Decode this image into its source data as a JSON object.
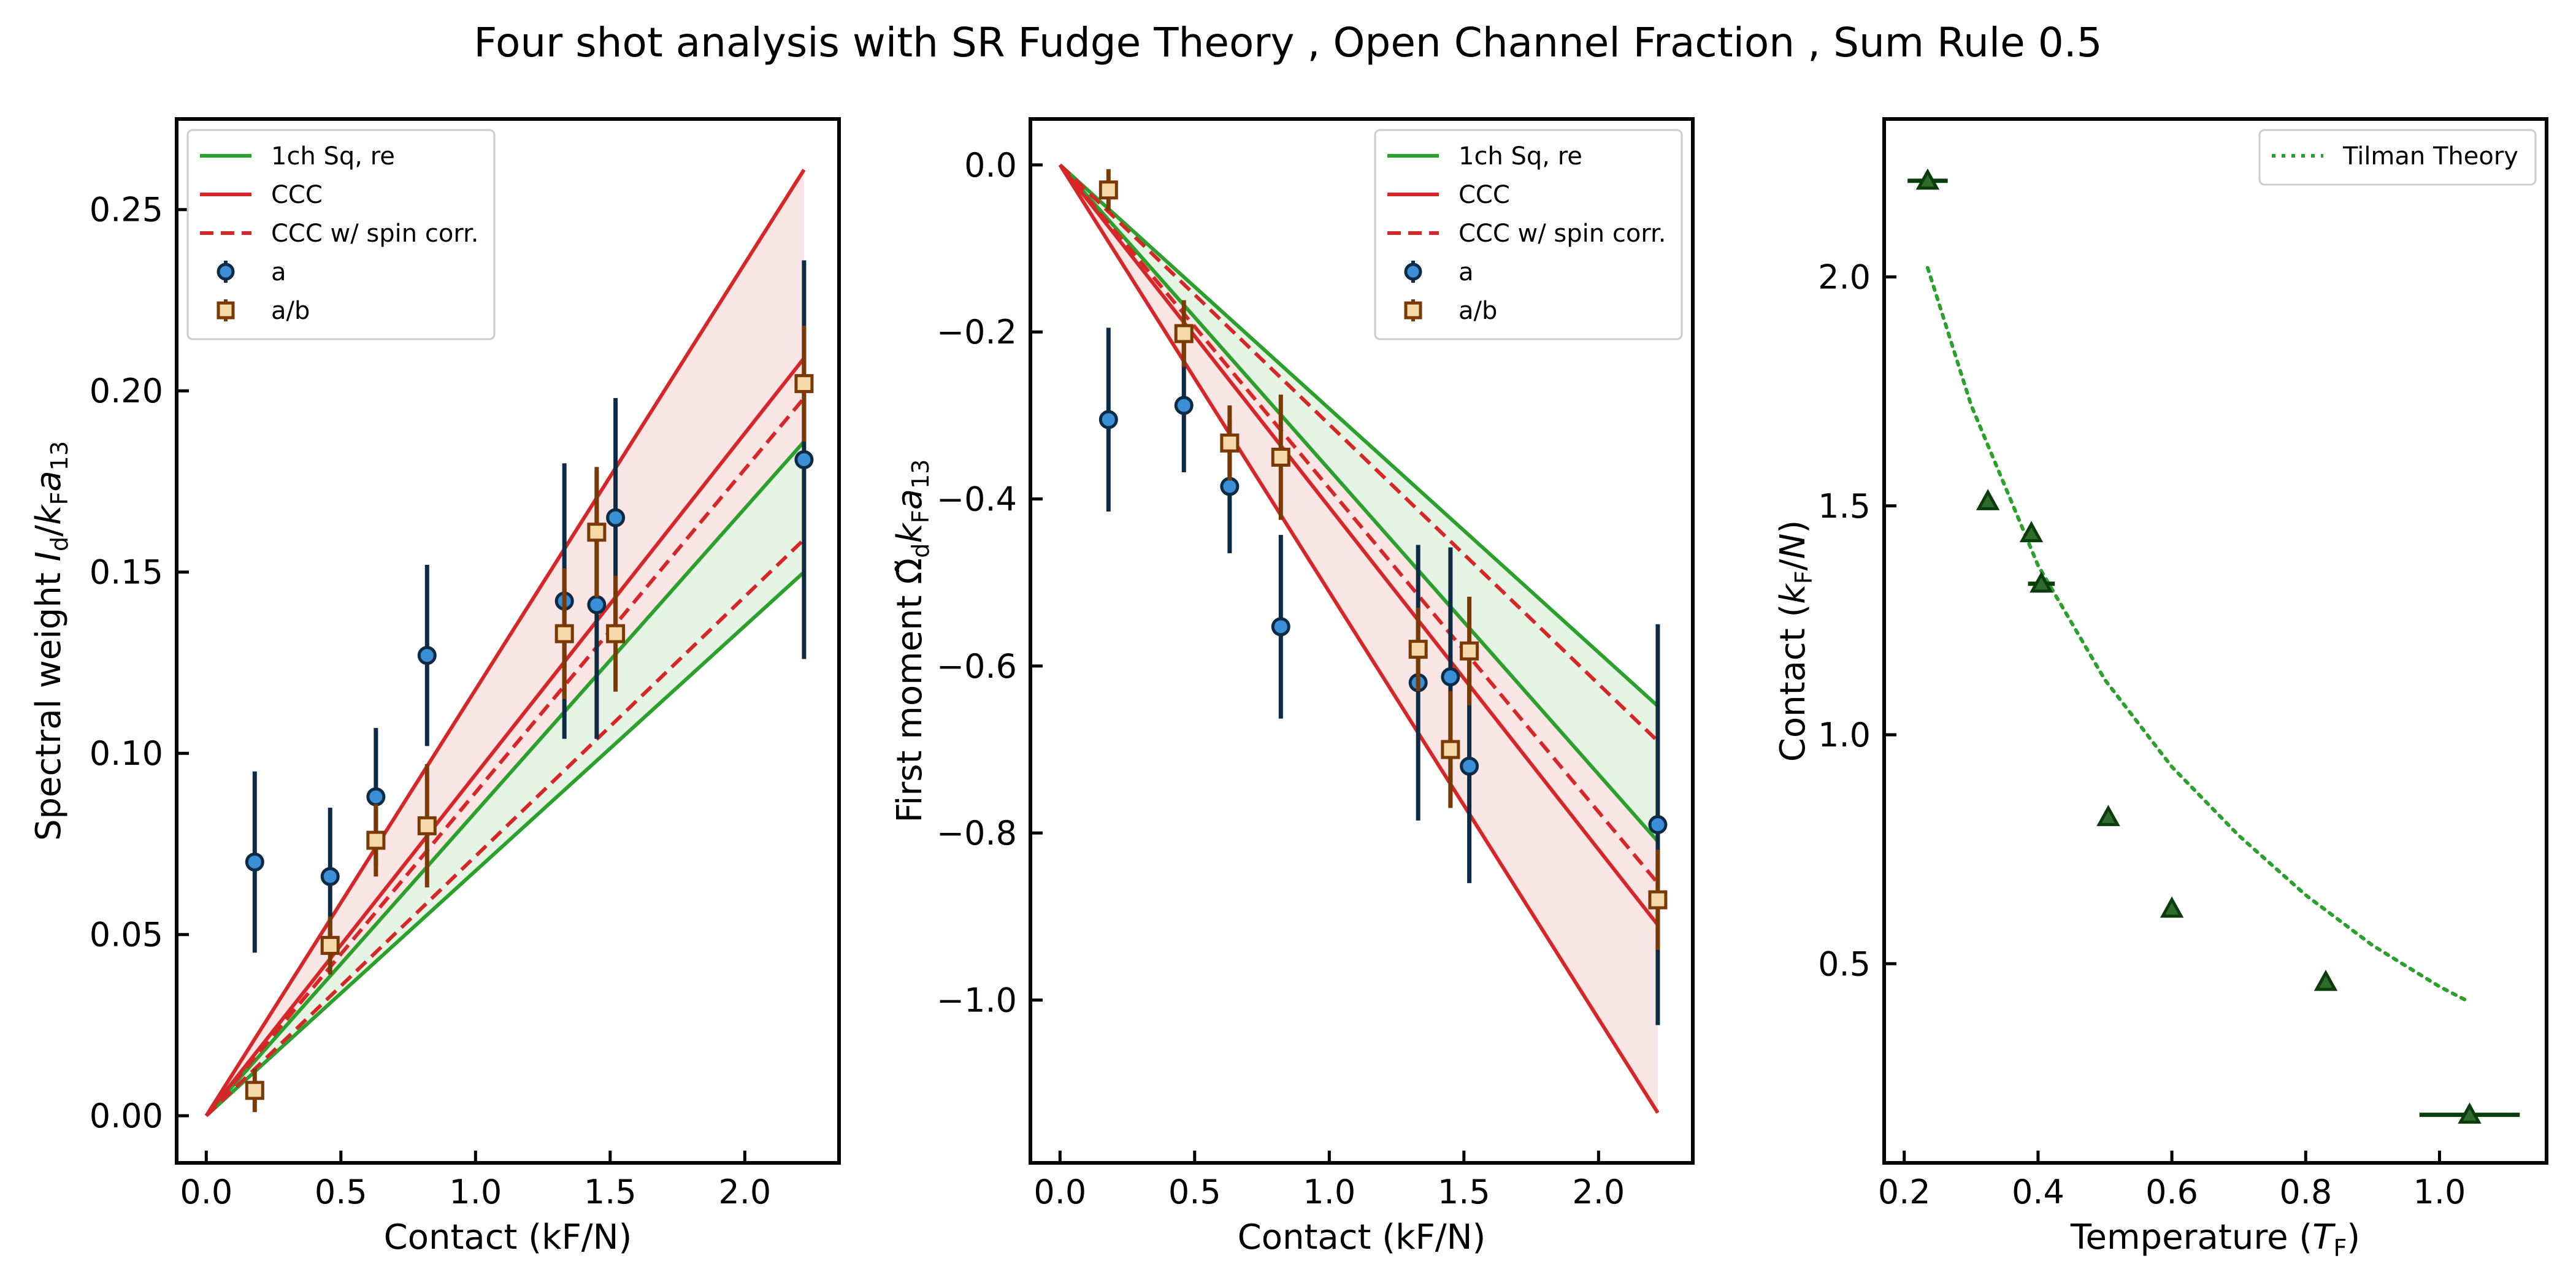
{
  "figure": {
    "title": "Four shot analysis with SR Fudge Theory , Open Channel Fraction , Sum Rule 0.5"
  },
  "colors": {
    "green": "#2ca02c",
    "red": "#d62728",
    "a_face": "#3a8fd6",
    "a_edge": "#0d2b45",
    "ab_face": "#f5d9a8",
    "ab_edge": "#7a3a05",
    "temp_marker": "#2f6b2f",
    "temp_edge": "#0b3d0b"
  },
  "chart_data": [
    {
      "type": "line",
      "xlabel": "Contact (kF/N)",
      "ylabel": "Spectral weight I_d/k_Fa_13",
      "ylabel_parts": [
        "Spectral weight ",
        "I",
        "d",
        "/",
        "k",
        "F",
        "a",
        "13"
      ],
      "xlim": [
        -0.11,
        2.35
      ],
      "ylim": [
        -0.013,
        0.275
      ],
      "xticks": [
        0.0,
        0.5,
        1.0,
        1.5,
        2.0
      ],
      "xtick_labels": [
        "0.0",
        "0.5",
        "1.0",
        "1.5",
        "2.0"
      ],
      "yticks": [
        0.0,
        0.05,
        0.1,
        0.15,
        0.2,
        0.25
      ],
      "ytick_labels": [
        "0.00",
        "0.05",
        "0.10",
        "0.15",
        "0.20",
        "0.25"
      ],
      "legend_loc": "upper left",
      "lines": [
        {
          "name": "1ch Sq, re",
          "style": "solid",
          "color": "green",
          "x": [
            0,
            2.22
          ],
          "y_pair": [
            [
              0,
              0.15
            ],
            [
              0,
              0.186
            ]
          ]
        },
        {
          "name": "CCC",
          "style": "solid",
          "color": "red",
          "x": [
            0,
            2.22
          ],
          "y_pair": [
            [
              0,
              0.209
            ],
            [
              0,
              0.261
            ]
          ]
        },
        {
          "name": "CCC w/ spin corr.",
          "style": "dashed",
          "color": "red",
          "x": [
            0,
            2.22
          ],
          "y_pair": [
            [
              0,
              0.159
            ],
            [
              0,
              0.198
            ]
          ]
        }
      ],
      "bands": [
        {
          "color": "green",
          "x": [
            0,
            2.22
          ],
          "low": [
            0,
            0.15
          ],
          "high": [
            0,
            0.186
          ]
        },
        {
          "color": "red",
          "x": [
            0,
            2.22
          ],
          "low": [
            0,
            0.186
          ],
          "high": [
            0,
            0.261
          ]
        }
      ],
      "series": [
        {
          "name": "a",
          "marker": "circle",
          "points": [
            {
              "x": 0.18,
              "y": 0.07,
              "err": 0.025
            },
            {
              "x": 0.46,
              "y": 0.066,
              "err": 0.019
            },
            {
              "x": 0.63,
              "y": 0.088,
              "err": 0.019
            },
            {
              "x": 0.82,
              "y": 0.127,
              "err": 0.025
            },
            {
              "x": 1.33,
              "y": 0.142,
              "err": 0.038
            },
            {
              "x": 1.45,
              "y": 0.141,
              "err": 0.037
            },
            {
              "x": 1.52,
              "y": 0.165,
              "err": 0.033
            },
            {
              "x": 2.22,
              "y": 0.181,
              "err": 0.055
            }
          ]
        },
        {
          "name": "a/b",
          "marker": "square",
          "points": [
            {
              "x": 0.18,
              "y": 0.007,
              "err": 0.006
            },
            {
              "x": 0.46,
              "y": 0.047,
              "err": 0.008
            },
            {
              "x": 0.63,
              "y": 0.076,
              "err": 0.01
            },
            {
              "x": 0.82,
              "y": 0.08,
              "err": 0.017
            },
            {
              "x": 1.33,
              "y": 0.133,
              "err": 0.018
            },
            {
              "x": 1.45,
              "y": 0.161,
              "err": 0.018
            },
            {
              "x": 1.52,
              "y": 0.133,
              "err": 0.016
            },
            {
              "x": 2.22,
              "y": 0.202,
              "err": 0.016
            }
          ]
        }
      ]
    },
    {
      "type": "line",
      "xlabel": "Contact (kF/N)",
      "ylabel": "First moment Ω̃_dk_Fa_13",
      "ylabel_parts": [
        "First moment ",
        "Ω̃",
        "d",
        "k",
        "F",
        "a",
        "13"
      ],
      "xlim": [
        -0.11,
        2.35
      ],
      "ylim": [
        -1.195,
        0.055
      ],
      "xticks": [
        0.0,
        0.5,
        1.0,
        1.5,
        2.0
      ],
      "xtick_labels": [
        "0.0",
        "0.5",
        "1.0",
        "1.5",
        "2.0"
      ],
      "yticks": [
        0.0,
        -0.2,
        -0.4,
        -0.6,
        -0.8,
        -1.0
      ],
      "ytick_labels": [
        "0.0",
        "−0.2",
        "−0.4",
        "−0.6",
        "−0.8",
        "−1.0"
      ],
      "legend_loc": "upper right",
      "lines": [
        {
          "name": "1ch Sq, re",
          "style": "solid",
          "color": "green",
          "x": [
            0,
            2.22
          ],
          "y_pair": [
            [
              0,
              -0.648
            ],
            [
              0,
              -0.81
            ]
          ]
        },
        {
          "name": "CCC",
          "style": "solid",
          "color": "red",
          "x": [
            0,
            2.22
          ],
          "y_pair": [
            [
              0,
              -0.91
            ],
            [
              0,
              -1.135
            ]
          ]
        },
        {
          "name": "CCC w/ spin corr.",
          "style": "dashed",
          "color": "red",
          "x": [
            0,
            2.22
          ],
          "y_pair": [
            [
              0,
              -0.69
            ],
            [
              0,
              -0.86
            ]
          ]
        }
      ],
      "bands": [
        {
          "color": "green",
          "x": [
            0,
            2.22
          ],
          "low": [
            0,
            -0.81
          ],
          "high": [
            0,
            -0.648
          ]
        },
        {
          "color": "red",
          "x": [
            0,
            2.22
          ],
          "low": [
            0,
            -1.135
          ],
          "high": [
            0,
            -0.81
          ]
        }
      ],
      "series": [
        {
          "name": "a",
          "marker": "circle",
          "points": [
            {
              "x": 0.18,
              "y": -0.305,
              "err": 0.11
            },
            {
              "x": 0.46,
              "y": -0.288,
              "err": 0.08
            },
            {
              "x": 0.63,
              "y": -0.385,
              "err": 0.08
            },
            {
              "x": 0.82,
              "y": -0.553,
              "err": 0.11
            },
            {
              "x": 1.33,
              "y": -0.62,
              "err": 0.165
            },
            {
              "x": 1.45,
              "y": -0.613,
              "err": 0.155
            },
            {
              "x": 1.52,
              "y": -0.72,
              "err": 0.14
            },
            {
              "x": 2.22,
              "y": -0.79,
              "err": 0.24
            }
          ]
        },
        {
          "name": "a/b",
          "marker": "square",
          "points": [
            {
              "x": 0.18,
              "y": -0.03,
              "err": 0.025
            },
            {
              "x": 0.46,
              "y": -0.202,
              "err": 0.04
            },
            {
              "x": 0.63,
              "y": -0.333,
              "err": 0.045
            },
            {
              "x": 0.82,
              "y": -0.35,
              "err": 0.075
            },
            {
              "x": 1.33,
              "y": -0.58,
              "err": 0.05
            },
            {
              "x": 1.45,
              "y": -0.7,
              "err": 0.07
            },
            {
              "x": 1.52,
              "y": -0.582,
              "err": 0.065
            },
            {
              "x": 2.22,
              "y": -0.88,
              "err": 0.06
            }
          ]
        }
      ]
    },
    {
      "type": "scatter",
      "xlabel": "Temperature (T_F)",
      "xlabel_parts": [
        "Temperature (",
        "T",
        "F",
        ")"
      ],
      "ylabel": "Contact (k_F/N)",
      "ylabel_parts": [
        "Contact (",
        "k",
        "F",
        "/",
        "N",
        ")"
      ],
      "xlim": [
        0.17,
        1.16
      ],
      "ylim": [
        0.065,
        2.345
      ],
      "xticks": [
        0.2,
        0.4,
        0.6,
        0.8,
        1.0
      ],
      "xtick_labels": [
        "0.2",
        "0.4",
        "0.6",
        "0.8",
        "1.0"
      ],
      "yticks": [
        0.5,
        1.0,
        1.5,
        2.0
      ],
      "ytick_labels": [
        "0.5",
        "1.0",
        "1.5",
        "2.0"
      ],
      "legend_loc": "upper right",
      "lines": [
        {
          "name": "Tilman Theory",
          "style": "dotted",
          "color": "green",
          "x": [
            0.235,
            0.3,
            0.4,
            0.5,
            0.6,
            0.7,
            0.8,
            0.9,
            1.0,
            1.04
          ],
          "y": [
            2.02,
            1.72,
            1.37,
            1.12,
            0.93,
            0.78,
            0.65,
            0.54,
            0.45,
            0.42
          ]
        }
      ],
      "series": [
        {
          "name": "",
          "marker": "triangle",
          "points": [
            {
              "x": 0.235,
              "y": 2.21,
              "xerr": 0.03
            },
            {
              "x": 0.325,
              "y": 1.51,
              "xerr": 0.0
            },
            {
              "x": 0.39,
              "y": 1.44,
              "xerr": 0.0
            },
            {
              "x": 0.405,
              "y": 1.33,
              "xerr": 0.02
            },
            {
              "x": 0.505,
              "y": 0.82,
              "xerr": 0.0
            },
            {
              "x": 0.6,
              "y": 0.62,
              "xerr": 0.0
            },
            {
              "x": 0.83,
              "y": 0.46,
              "xerr": 0.0
            },
            {
              "x": 1.045,
              "y": 0.17,
              "xerr": 0.075
            }
          ]
        }
      ]
    }
  ]
}
